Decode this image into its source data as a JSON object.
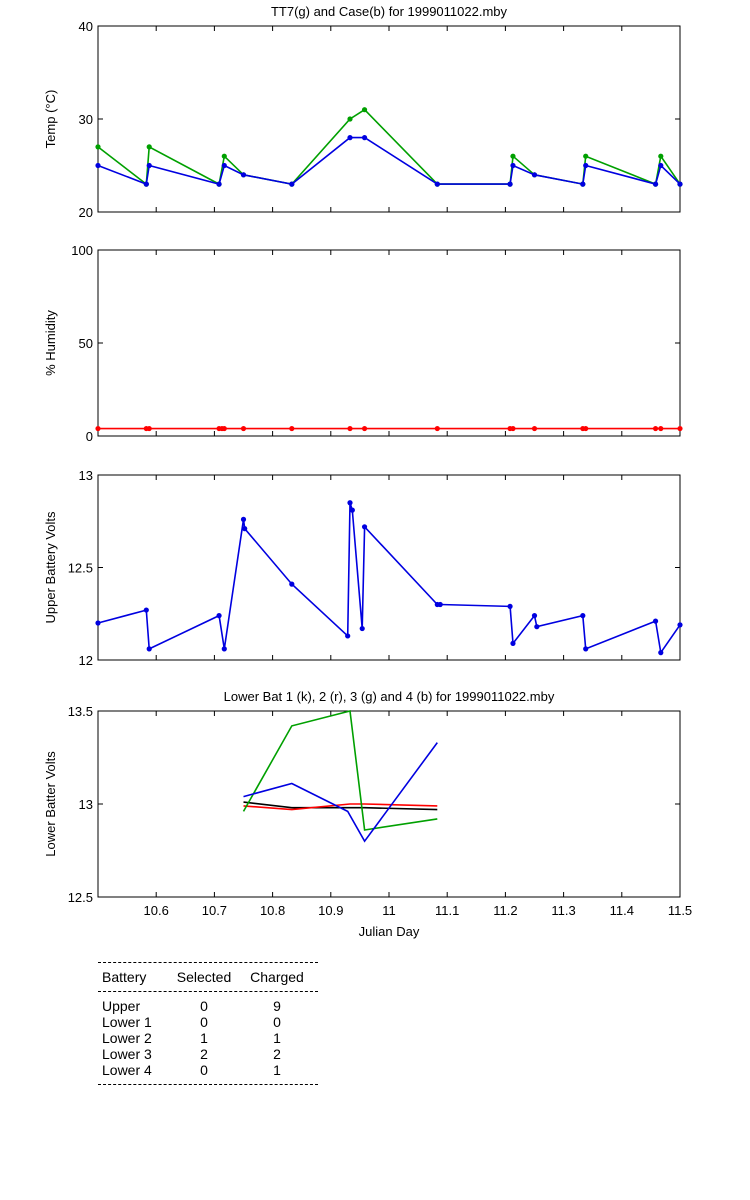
{
  "colors": {
    "k": "#000000",
    "r": "#ff0000",
    "g": "#00a000",
    "b": "#0000e0"
  },
  "chart_data": [
    {
      "type": "line",
      "title": "TT7(g) and Case(b) for 1999011022.mby",
      "xlabel": "",
      "ylabel": "Temp  (°C)",
      "xlim": [
        10.5,
        11.5
      ],
      "ylim": [
        20,
        40
      ],
      "yticks": [
        20,
        30,
        40
      ],
      "ytick_labels": [
        "20",
        "30",
        "40"
      ],
      "series": [
        {
          "color": "g",
          "markers": true,
          "x": [
            10.5,
            10.583,
            10.588,
            10.708,
            10.717,
            10.75,
            10.833,
            10.933,
            10.958,
            11.083,
            11.208,
            11.213,
            11.25,
            11.333,
            11.338,
            11.458,
            11.467,
            11.5
          ],
          "y": [
            27,
            23,
            27,
            23,
            26,
            24,
            23,
            30,
            31,
            23,
            23,
            26,
            24,
            23,
            26,
            23,
            26,
            23
          ]
        },
        {
          "color": "b",
          "markers": true,
          "x": [
            10.5,
            10.583,
            10.588,
            10.708,
            10.717,
            10.75,
            10.833,
            10.933,
            10.958,
            11.083,
            11.208,
            11.213,
            11.25,
            11.333,
            11.338,
            11.458,
            11.467,
            11.5
          ],
          "y": [
            25,
            23,
            25,
            23,
            25,
            24,
            23,
            28,
            28,
            23,
            23,
            25,
            24,
            23,
            25,
            23,
            25,
            23
          ]
        }
      ]
    },
    {
      "type": "line",
      "title": "",
      "xlabel": "",
      "ylabel": "% Humidity",
      "xlim": [
        10.5,
        11.5
      ],
      "ylim": [
        0,
        100
      ],
      "yticks": [
        0,
        50,
        100
      ],
      "ytick_labels": [
        "0",
        "50",
        "100"
      ],
      "series": [
        {
          "color": "r",
          "markers": true,
          "x": [
            10.5,
            10.583,
            10.588,
            10.708,
            10.713,
            10.717,
            10.75,
            10.833,
            10.933,
            10.958,
            11.083,
            11.208,
            11.213,
            11.25,
            11.333,
            11.338,
            11.458,
            11.467,
            11.5
          ],
          "y": [
            4,
            4,
            4,
            4,
            4,
            4,
            4,
            4,
            4,
            4,
            4,
            4,
            4,
            4,
            4,
            4,
            4,
            4,
            4
          ]
        }
      ]
    },
    {
      "type": "line",
      "title": "",
      "xlabel": "",
      "ylabel": "Upper Battery Volts",
      "xlim": [
        10.5,
        11.5
      ],
      "ylim": [
        12,
        13
      ],
      "yticks": [
        12,
        12.5,
        13
      ],
      "ytick_labels": [
        "12",
        "12.5",
        "13"
      ],
      "series": [
        {
          "color": "b",
          "markers": true,
          "x": [
            10.5,
            10.583,
            10.588,
            10.708,
            10.717,
            10.75,
            10.752,
            10.833,
            10.929,
            10.933,
            10.937,
            10.954,
            10.958,
            11.083,
            11.088,
            11.208,
            11.213,
            11.25,
            11.254,
            11.333,
            11.338,
            11.458,
            11.467,
            11.5
          ],
          "y": [
            12.2,
            12.27,
            12.06,
            12.24,
            12.06,
            12.76,
            12.71,
            12.41,
            12.13,
            12.85,
            12.81,
            12.17,
            12.72,
            12.3,
            12.3,
            12.29,
            12.09,
            12.24,
            12.18,
            12.24,
            12.06,
            12.21,
            12.04,
            12.19
          ]
        }
      ]
    },
    {
      "type": "line",
      "title": "Lower Bat 1 (k), 2 (r), 3 (g) and 4 (b) for 1999011022.mby",
      "xlabel": "Julian Day",
      "ylabel": "Lower Batter Volts",
      "xlim": [
        10.5,
        11.5
      ],
      "ylim": [
        12.5,
        13.5
      ],
      "yticks": [
        12.5,
        13,
        13.5
      ],
      "ytick_labels": [
        "12.5",
        "13",
        "13.5"
      ],
      "xticks": [
        10.6,
        10.7,
        10.8,
        10.9,
        11,
        11.1,
        11.2,
        11.3,
        11.4,
        11.5
      ],
      "xtick_labels": [
        "10.6",
        "10.7",
        "10.8",
        "10.9",
        "11",
        "11.1",
        "11.2",
        "11.3",
        "11.4",
        "11.5"
      ],
      "series": [
        {
          "color": "k",
          "markers": false,
          "x": [
            10.75,
            10.833,
            10.933,
            10.958,
            11.083
          ],
          "y": [
            13.01,
            12.98,
            12.98,
            12.98,
            12.97
          ]
        },
        {
          "color": "r",
          "markers": false,
          "x": [
            10.75,
            10.833,
            10.933,
            10.958,
            11.083
          ],
          "y": [
            12.99,
            12.97,
            13.0,
            13.0,
            12.99
          ]
        },
        {
          "color": "g",
          "markers": false,
          "x": [
            10.75,
            10.833,
            10.933,
            10.958,
            11.083
          ],
          "y": [
            12.96,
            13.42,
            13.5,
            12.86,
            12.92
          ]
        },
        {
          "color": "b",
          "markers": false,
          "x": [
            10.75,
            10.833,
            10.929,
            10.958,
            11.083
          ],
          "y": [
            13.04,
            13.11,
            12.96,
            12.8,
            13.33
          ]
        }
      ]
    }
  ],
  "battery_table": {
    "headers": [
      "Battery",
      "Selected",
      "Charged"
    ],
    "rows": [
      [
        "Upper",
        "0",
        "9"
      ],
      [
        "Lower 1",
        "0",
        "0"
      ],
      [
        "Lower 2",
        "1",
        "1"
      ],
      [
        "Lower 3",
        "2",
        "2"
      ],
      [
        "Lower 4",
        "0",
        "1"
      ]
    ]
  }
}
